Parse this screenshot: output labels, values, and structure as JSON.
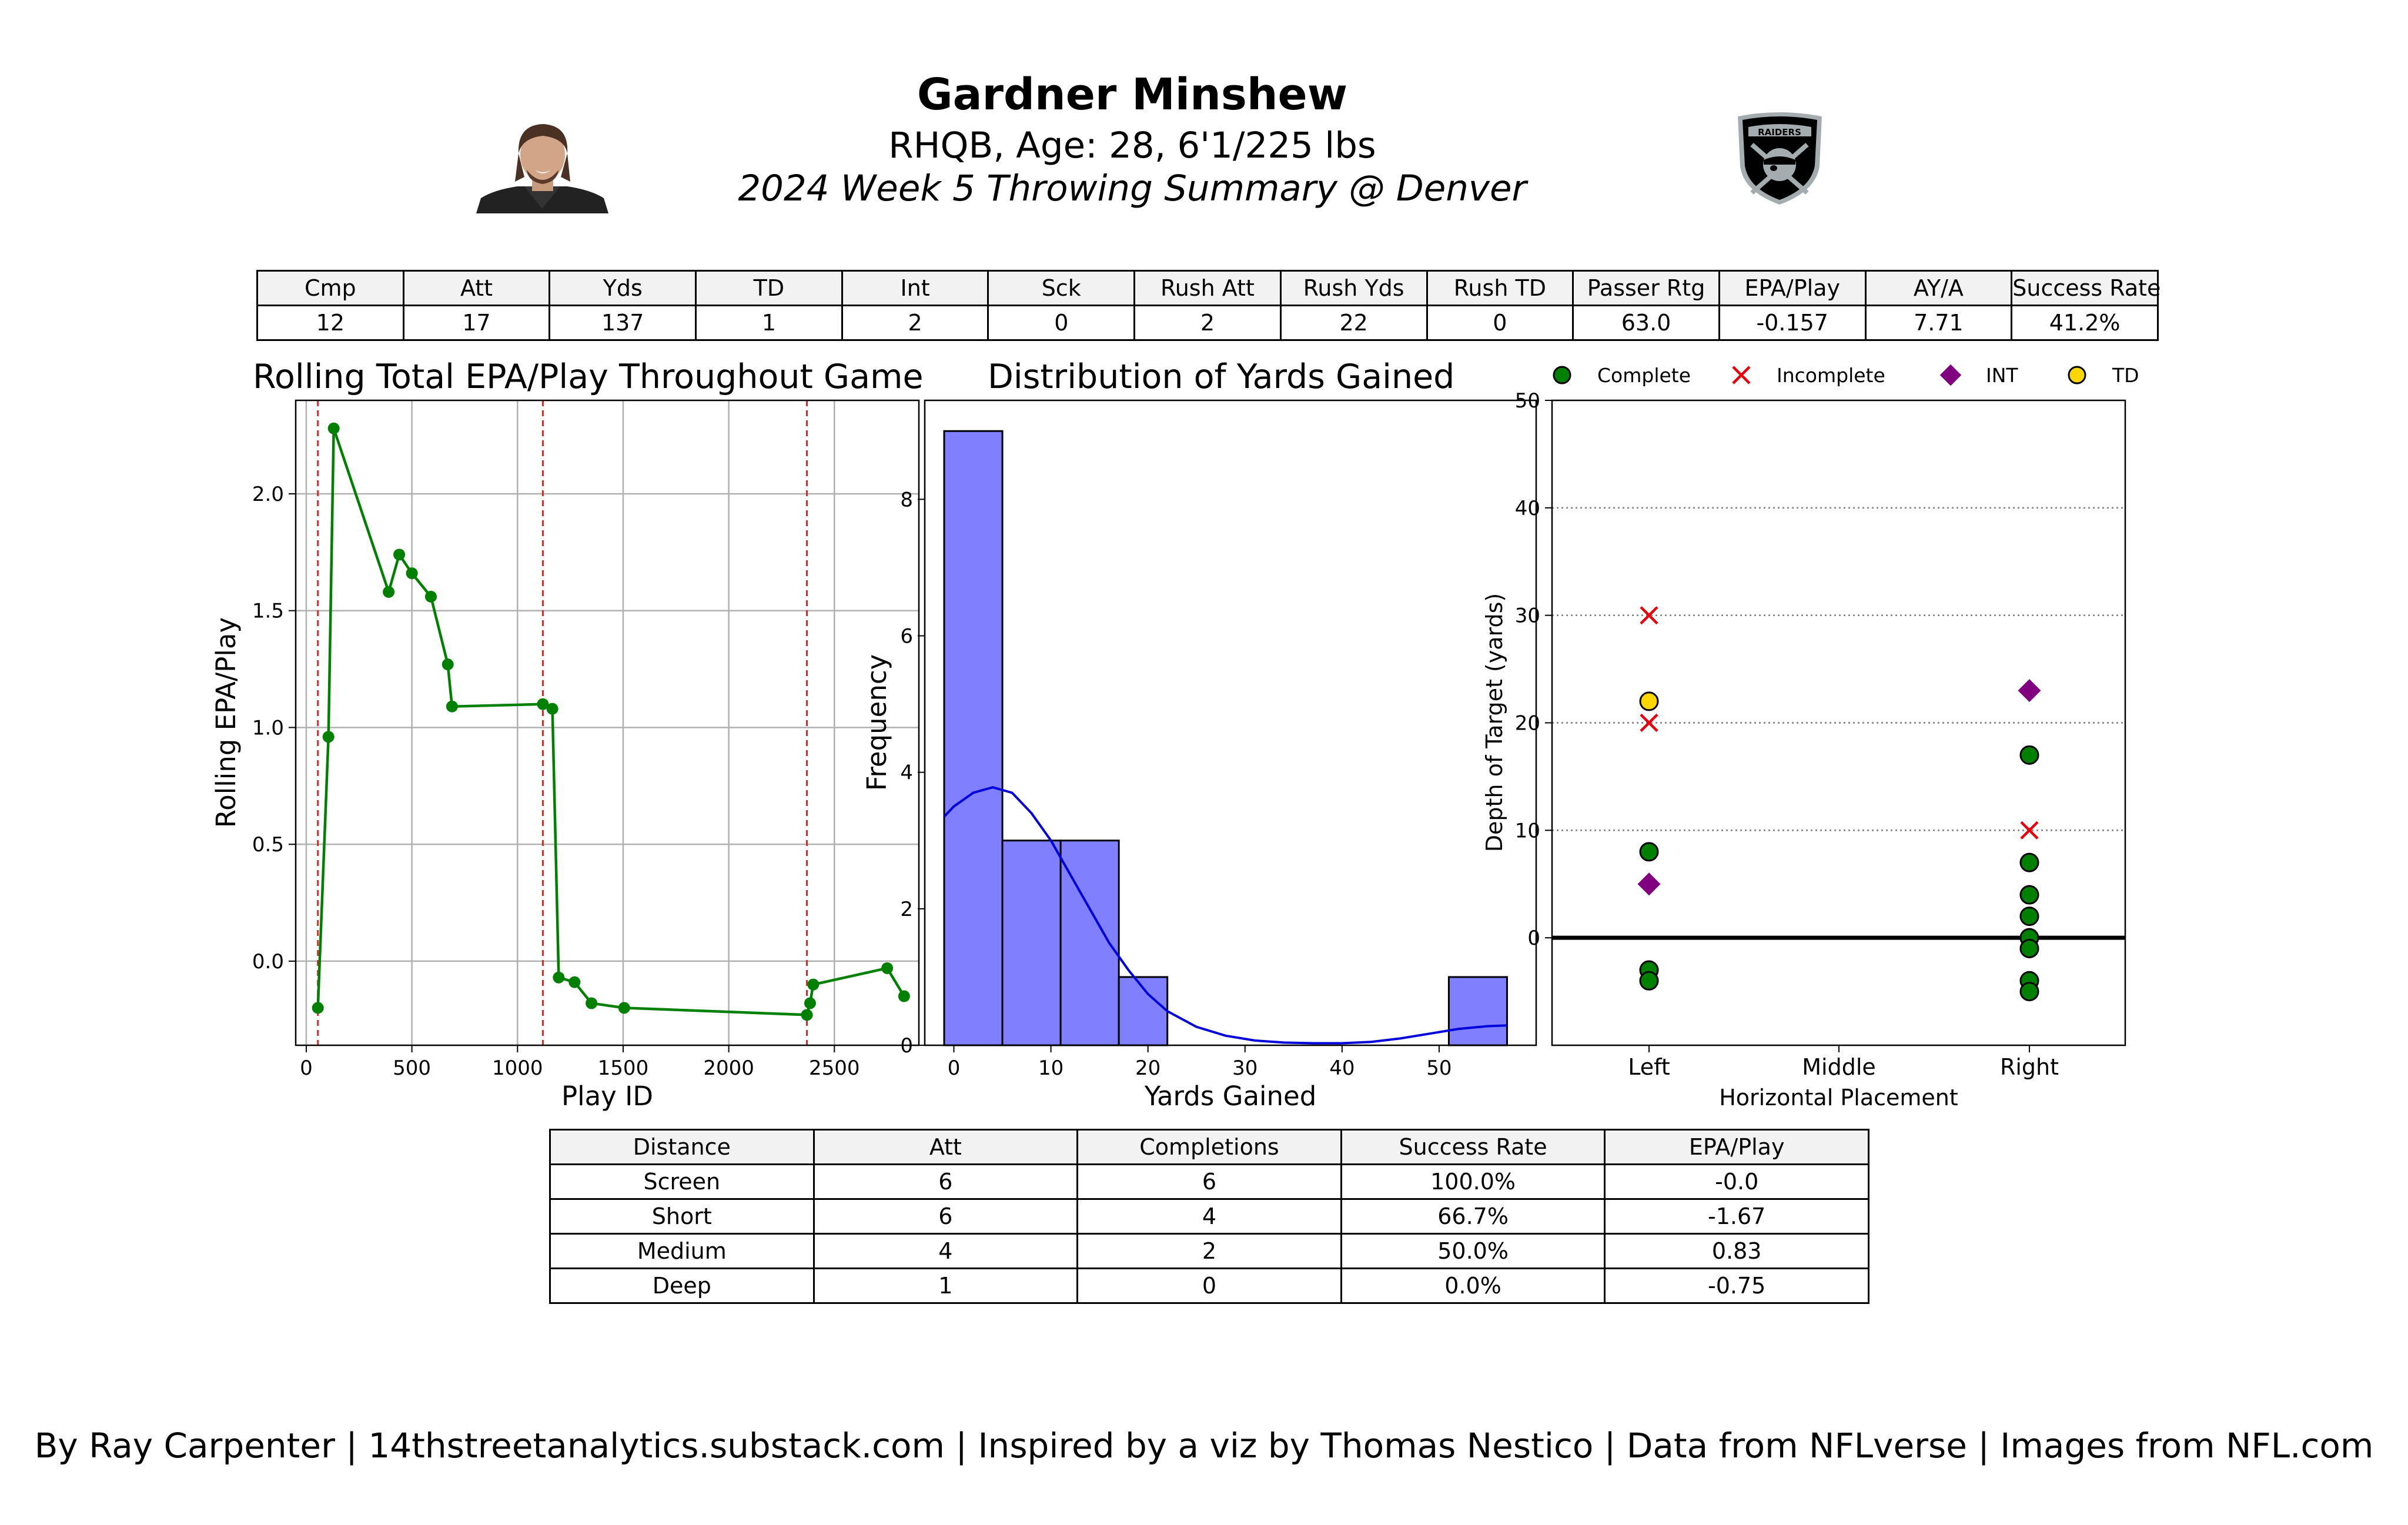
{
  "header": {
    "name": "Gardner Minshew",
    "subtitle": "RHQB, Age: 28, 6'1/225 lbs",
    "summary": "2024 Week 5 Throwing Summary @ Denver",
    "team_logo_text": "RAIDERS"
  },
  "stats_table": {
    "headers": [
      "Cmp",
      "Att",
      "Yds",
      "TD",
      "Int",
      "Sck",
      "Rush Att",
      "Rush Yds",
      "Rush TD",
      "Passer Rtg",
      "EPA/Play",
      "AY/A",
      "Success Rate"
    ],
    "values": [
      "12",
      "17",
      "137",
      "1",
      "2",
      "0",
      "2",
      "22",
      "0",
      "63.0",
      "-0.157",
      "7.71",
      "41.2%"
    ]
  },
  "distance_table": {
    "headers": [
      "Distance",
      "Att",
      "Completions",
      "Success Rate",
      "EPA/Play"
    ],
    "rows": [
      [
        "Screen",
        "6",
        "6",
        "100.0%",
        "-0.0"
      ],
      [
        "Short",
        "6",
        "4",
        "66.7%",
        "-1.67"
      ],
      [
        "Medium",
        "4",
        "2",
        "50.0%",
        "0.83"
      ],
      [
        "Deep",
        "1",
        "0",
        "0.0%",
        "-0.75"
      ]
    ]
  },
  "footer": "By Ray Carpenter | 14thstreetanalytics.substack.com | Inspired by a viz by Thomas Nestico | Data from NFLverse | Images from NFL.com",
  "colors": {
    "line": "#008000",
    "vline": "#d62728",
    "hist_fill": "#8080ff",
    "kde": "#0000dd",
    "complete": "#008000",
    "incomplete": "#e8000b",
    "int": "#800080",
    "td": "#ffd700",
    "table_header": "#f2f2f2"
  },
  "chart_data": [
    {
      "type": "line",
      "title": "Rolling Total EPA/Play Throughout Game",
      "xlabel": "Play ID",
      "ylabel": "Rolling EPA/Play",
      "xlim": [
        -50,
        2900
      ],
      "ylim": [
        -0.36,
        2.4
      ],
      "xticks": [
        0,
        500,
        1000,
        1500,
        2000,
        2500
      ],
      "yticks": [
        0.0,
        0.5,
        1.0,
        1.5,
        2.0
      ],
      "grid": true,
      "x": [
        55,
        105,
        130,
        390,
        440,
        500,
        590,
        670,
        690,
        1120,
        1165,
        1195,
        1270,
        1350,
        1505,
        2370,
        2385,
        2400,
        2750,
        2830
      ],
      "y": [
        -0.2,
        0.96,
        2.28,
        1.58,
        1.74,
        1.66,
        1.56,
        1.27,
        1.09,
        1.1,
        1.08,
        -0.07,
        -0.09,
        -0.18,
        -0.2,
        -0.23,
        -0.18,
        -0.1,
        -0.03,
        -0.15
      ],
      "vlines": [
        55,
        1120,
        2370
      ]
    },
    {
      "type": "bar",
      "title": "Distribution of Yards Gained",
      "xlabel": "Yards Gained",
      "ylabel": "Frequency",
      "xlim": [
        -3,
        60
      ],
      "ylim": [
        0,
        9.45
      ],
      "xticks": [
        0,
        10,
        20,
        30,
        40,
        50
      ],
      "yticks": [
        0,
        2,
        4,
        6,
        8
      ],
      "bins": [
        [
          -1,
          5
        ],
        [
          5,
          11
        ],
        [
          11,
          17
        ],
        [
          17,
          22
        ],
        [
          51,
          57
        ]
      ],
      "values": [
        9,
        3,
        3,
        1,
        1
      ],
      "kde": [
        [
          -1,
          3.35
        ],
        [
          0,
          3.5
        ],
        [
          2,
          3.7
        ],
        [
          4,
          3.78
        ],
        [
          6,
          3.7
        ],
        [
          8,
          3.4
        ],
        [
          10,
          3.0
        ],
        [
          12,
          2.5
        ],
        [
          14,
          2.0
        ],
        [
          16,
          1.5
        ],
        [
          18,
          1.1
        ],
        [
          20,
          0.75
        ],
        [
          22,
          0.5
        ],
        [
          25,
          0.27
        ],
        [
          28,
          0.14
        ],
        [
          31,
          0.07
        ],
        [
          34,
          0.04
        ],
        [
          37,
          0.03
        ],
        [
          40,
          0.03
        ],
        [
          43,
          0.05
        ],
        [
          46,
          0.1
        ],
        [
          49,
          0.17
        ],
        [
          52,
          0.24
        ],
        [
          55,
          0.28
        ],
        [
          57,
          0.29
        ]
      ]
    },
    {
      "type": "scatter",
      "xlabel": "Horizontal Placement",
      "ylabel": "Depth of Target (yards)",
      "categories": [
        "Left",
        "Middle",
        "Right"
      ],
      "ylim": [
        -10,
        50
      ],
      "yticks": [
        0,
        10,
        20,
        30,
        40,
        50
      ],
      "legend": [
        "Complete",
        "Incomplete",
        "INT",
        "TD"
      ],
      "legend_position": "top",
      "series": [
        {
          "name": "Complete",
          "points": [
            [
              "Left",
              8
            ],
            [
              "Left",
              -3
            ],
            [
              "Left",
              -4
            ],
            [
              "Right",
              17
            ],
            [
              "Right",
              7
            ],
            [
              "Right",
              4
            ],
            [
              "Right",
              2
            ],
            [
              "Right",
              0
            ],
            [
              "Right",
              -1
            ],
            [
              "Right",
              -4
            ],
            [
              "Right",
              -5
            ]
          ]
        },
        {
          "name": "Incomplete",
          "points": [
            [
              "Left",
              30
            ],
            [
              "Left",
              20
            ],
            [
              "Right",
              10
            ]
          ]
        },
        {
          "name": "INT",
          "points": [
            [
              "Left",
              5
            ],
            [
              "Right",
              23
            ]
          ]
        },
        {
          "name": "TD",
          "points": [
            [
              "Left",
              22
            ]
          ]
        }
      ]
    }
  ]
}
